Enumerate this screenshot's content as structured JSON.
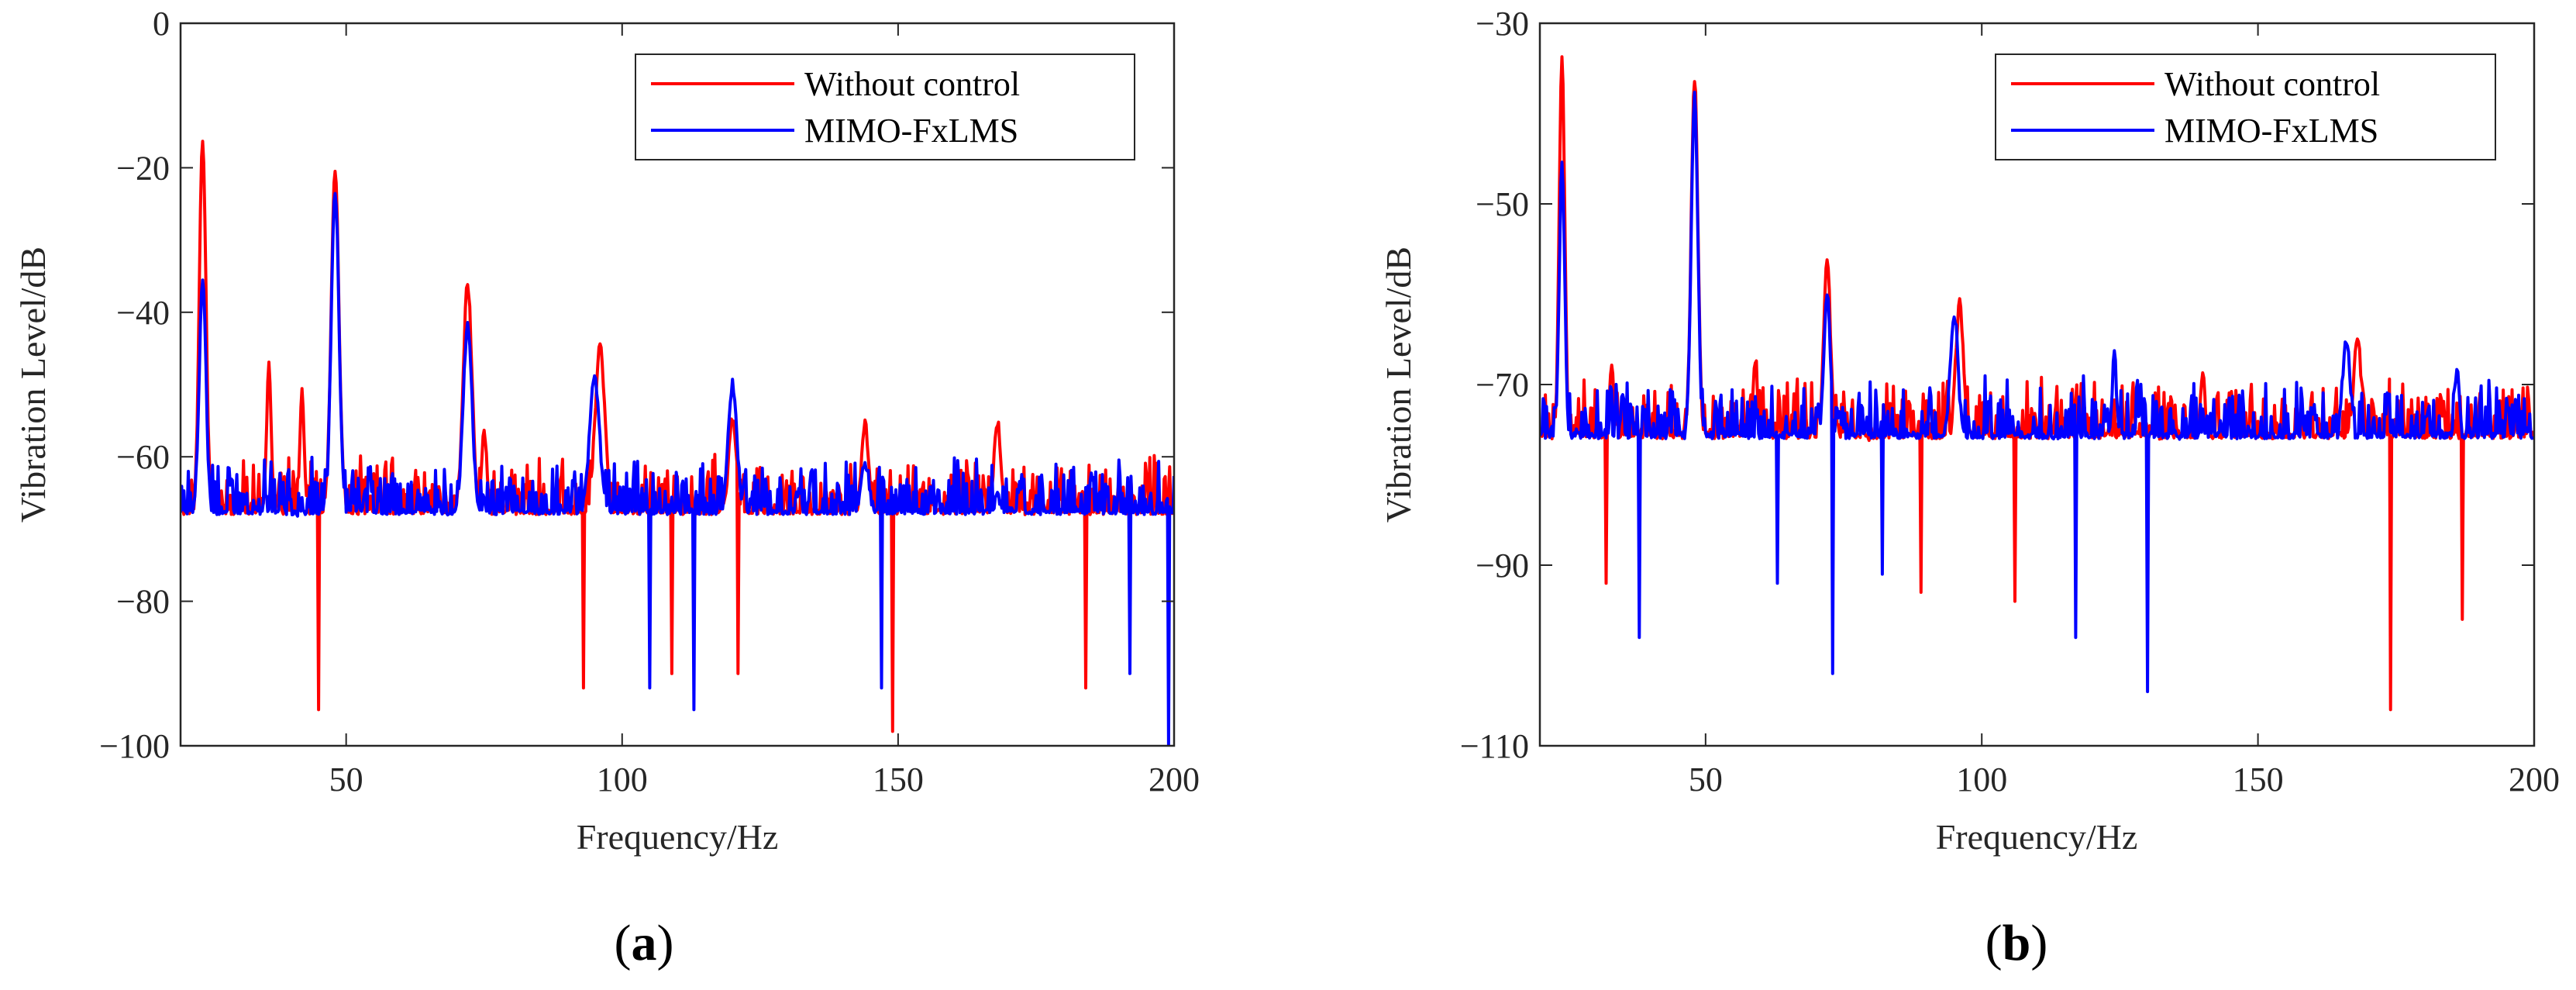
{
  "figure": {
    "domain": "Chart"
  },
  "colors": {
    "without_control": "#ff0000",
    "mimo_fxlms": "#0000ff",
    "axis": "#262626",
    "legend_box": "#262626"
  },
  "chart_data": [
    {
      "id": "a",
      "type": "line",
      "panel_label_open": "(",
      "panel_label_letter": "a",
      "panel_label_close": ")",
      "xlabel": "Frequency/Hz",
      "ylabel": "Vibration Level/dB",
      "xlim": [
        20,
        200
      ],
      "ylim": [
        -100,
        0
      ],
      "xticks": [
        50,
        100,
        150,
        200
      ],
      "yticks": [
        0,
        -20,
        -40,
        -60,
        -80,
        -100
      ],
      "xtick_labels": [
        "50",
        "100",
        "150",
        "200"
      ],
      "ytick_labels": [
        "0",
        "−20",
        "−40",
        "−60",
        "−80",
        "−100"
      ],
      "legend": {
        "location": "top-right",
        "entries": [
          "Without control",
          "MIMO-FxLMS"
        ]
      },
      "baseline": -68,
      "noise": 6,
      "seed_red": 11,
      "seed_blue": 29,
      "series": [
        {
          "name": "Without control",
          "color": "#ff0000",
          "peaks": [
            [
              24,
              -16,
              0.6
            ],
            [
              48,
              -20,
              0.7
            ],
            [
              72,
              -36,
              0.8
            ],
            [
              96,
              -45,
              0.9
            ],
            [
              120,
              -55,
              0.7
            ],
            [
              144,
              -55,
              0.6
            ],
            [
              168,
              -55,
              0.6
            ],
            [
              36,
              -47,
              0.4
            ],
            [
              42,
              -51,
              0.4
            ],
            [
              75,
              -57,
              0.5
            ]
          ],
          "dips": [
            [
              45,
              -95
            ],
            [
              93,
              -92
            ],
            [
              149,
              -98
            ],
            [
              109,
              -90
            ],
            [
              121,
              -90
            ],
            [
              184,
              -92
            ]
          ]
        },
        {
          "name": "MIMO-FxLMS",
          "color": "#0000ff",
          "peaks": [
            [
              24,
              -35,
              0.6
            ],
            [
              48,
              -23,
              0.7
            ],
            [
              72,
              -42,
              0.8
            ],
            [
              95,
              -49,
              0.9
            ],
            [
              120,
              -50,
              0.8
            ],
            [
              144,
              -61,
              0.7
            ],
            [
              168,
              -66,
              0.6
            ]
          ],
          "dips": [
            [
              199,
              -100
            ],
            [
              113,
              -95
            ],
            [
              147,
              -92
            ],
            [
              105,
              -92
            ],
            [
              192,
              -90
            ]
          ]
        }
      ]
    },
    {
      "id": "b",
      "type": "line",
      "panel_label_open": "(",
      "panel_label_letter": "b",
      "panel_label_close": ")",
      "xlabel": "Frequency/Hz",
      "ylabel": "Vibration Level/dB",
      "xlim": [
        20,
        200
      ],
      "ylim": [
        -110,
        -30
      ],
      "xticks": [
        50,
        100,
        150,
        200
      ],
      "yticks": [
        -30,
        -50,
        -70,
        -90,
        -110
      ],
      "xtick_labels": [
        "50",
        "100",
        "150",
        "200"
      ],
      "ytick_labels": [
        "−30",
        "−50",
        "−70",
        "−90",
        "−110"
      ],
      "legend": {
        "location": "top-right",
        "entries": [
          "Without control",
          "MIMO-FxLMS"
        ]
      },
      "baseline": -76,
      "noise": 5,
      "seed_red": 41,
      "seed_blue": 73,
      "series": [
        {
          "name": "Without control",
          "color": "#ff0000",
          "peaks": [
            [
              24,
              -34,
              0.5
            ],
            [
              48,
              -36,
              0.6
            ],
            [
              72,
              -56,
              0.6
            ],
            [
              96,
              -61,
              0.7
            ],
            [
              168,
              -65,
              0.7
            ],
            [
              33,
              -68,
              0.4
            ],
            [
              59,
              -67,
              0.4
            ],
            [
              140,
              -69,
              0.4
            ]
          ],
          "dips": [
            [
              174,
              -106
            ],
            [
              187,
              -96
            ],
            [
              89,
              -93
            ],
            [
              32,
              -92
            ],
            [
              106,
              -94
            ]
          ]
        },
        {
          "name": "MIMO-FxLMS",
          "color": "#0000ff",
          "peaks": [
            [
              24,
              -46,
              0.5
            ],
            [
              48,
              -38,
              0.6
            ],
            [
              72,
              -60,
              0.6
            ],
            [
              95,
              -62,
              0.7
            ],
            [
              166,
              -65,
              0.7
            ],
            [
              124,
              -67,
              0.4
            ],
            [
              186,
              -68,
              0.4
            ]
          ],
          "dips": [
            [
              38,
              -98
            ],
            [
              73,
              -102
            ],
            [
              130,
              -104
            ],
            [
              117,
              -98
            ],
            [
              63,
              -92
            ],
            [
              82,
              -91
            ]
          ]
        }
      ]
    }
  ]
}
